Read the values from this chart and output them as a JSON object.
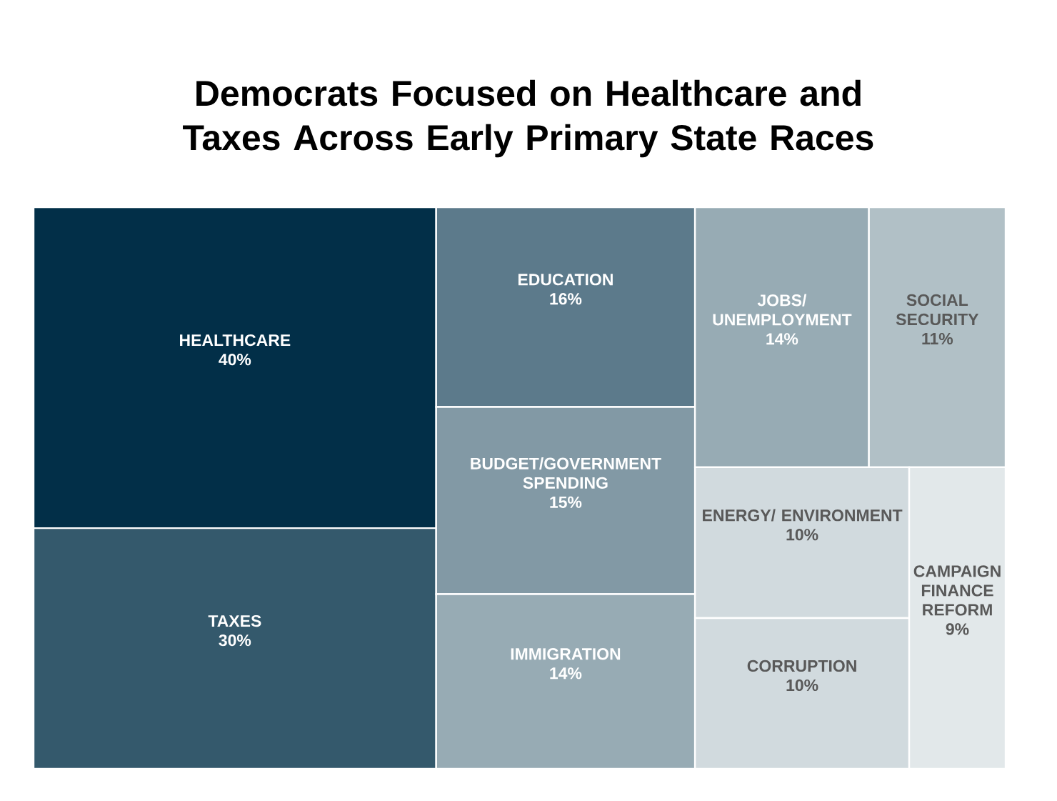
{
  "chart_data": {
    "type": "other",
    "title": "Democrats Focused on Healthcare and Taxes Across Early Primary State Races",
    "categories": [
      "HEALTHCARE",
      "TAXES",
      "EDUCATION",
      "BUDGET/GOVERNMENT SPENDING",
      "IMMIGRATION",
      "JOBS/ UNEMPLOYMENT",
      "SOCIAL SECURITY",
      "ENERGY/ ENVIRONMENT",
      "CORRUPTION",
      "CAMPAIGN FINANCE REFORM"
    ],
    "values": [
      40,
      30,
      16,
      15,
      14,
      14,
      11,
      10,
      10,
      9
    ],
    "value_labels": [
      "40%",
      "30%",
      "16%",
      "15%",
      "14%",
      "14%",
      "11%",
      "10%",
      "10%",
      "9%"
    ],
    "colors": [
      "#022f48",
      "#34596c",
      "#5c7a8b",
      "#8299a5",
      "#97abb4",
      "#97abb4",
      "#b1c0c6",
      "#d1dade",
      "#d1dade",
      "#e2e8ea"
    ]
  }
}
